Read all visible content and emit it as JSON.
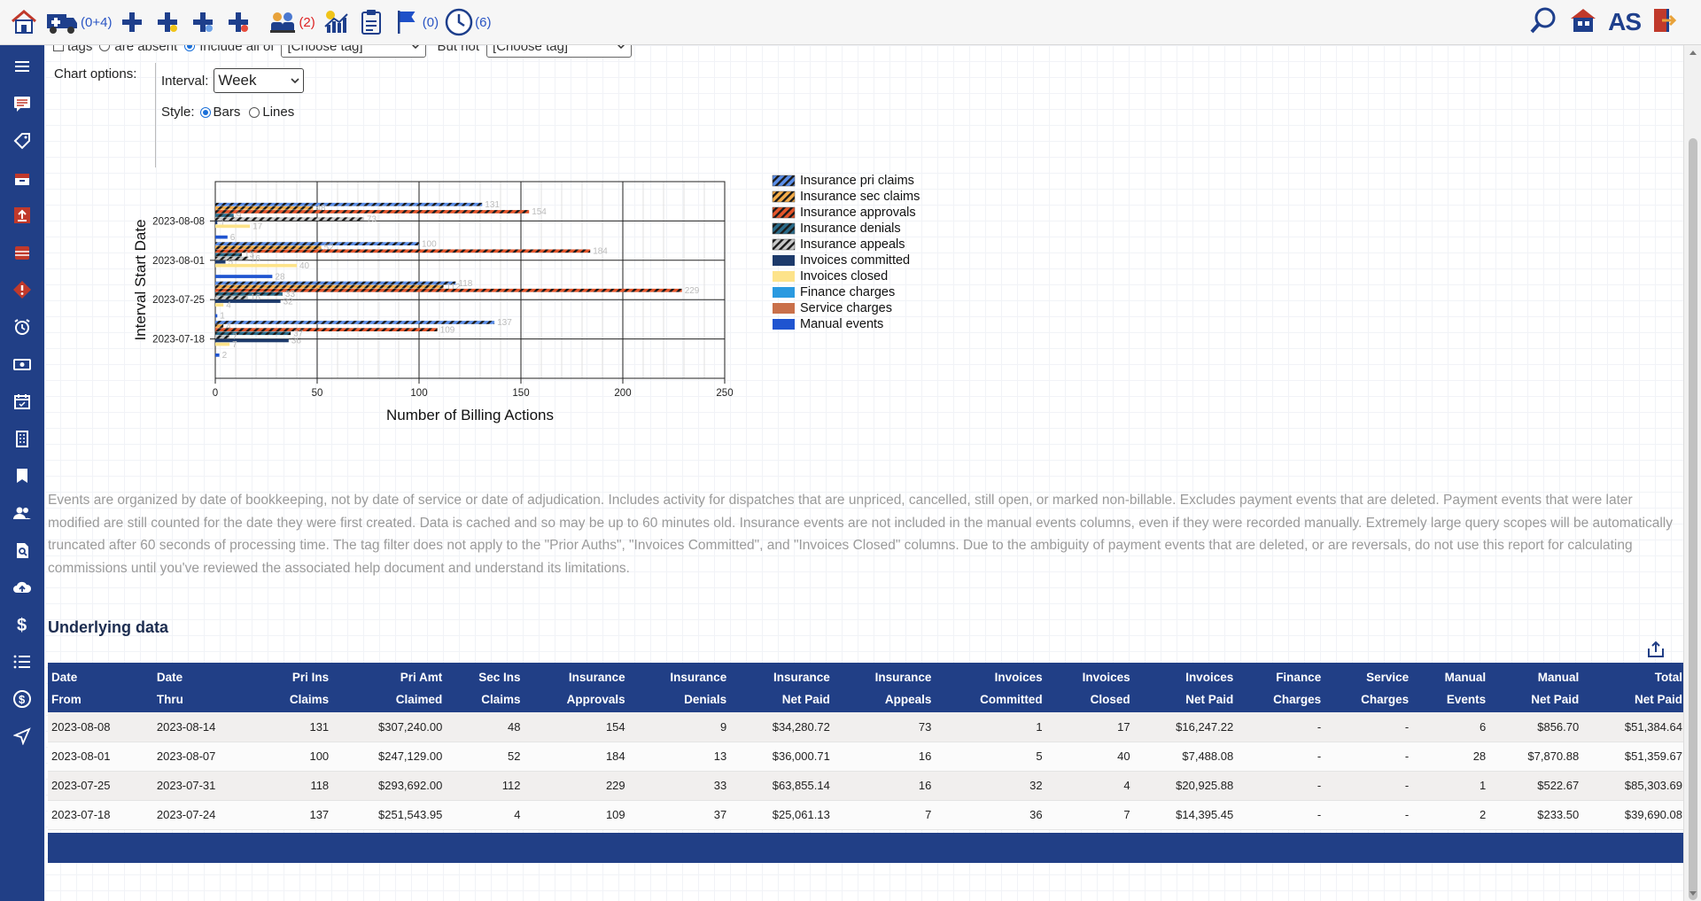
{
  "topbar": {
    "ambulance_count": "(0+4)",
    "team_count": "(2)",
    "flag_count": "(0)",
    "clock_count": "(6)",
    "user_initials": "AS"
  },
  "filters": {
    "partial_text_1": "tags",
    "partial_text_2": "are absent",
    "partial_text_3": "Include all of",
    "tag_select_1": "[Choose tag]",
    "but_not_label": "But not",
    "tag_select_2": "[Choose tag]"
  },
  "chart_options": {
    "label": "Chart options:",
    "interval_label": "Interval:",
    "interval_value": "Week",
    "style_label": "Style:",
    "style_bars": "Bars",
    "style_lines": "Lines",
    "style_selected": "Bars"
  },
  "chart_data": {
    "type": "bar",
    "orientation": "horizontal",
    "categories": [
      "2023-08-08",
      "2023-08-01",
      "2023-07-25",
      "2023-07-18"
    ],
    "xlabel": "Number of Billing Actions",
    "ylabel": "Interval Start Date",
    "xlim": [
      0,
      250
    ],
    "xticks": [
      0,
      50,
      100,
      150,
      200,
      250
    ],
    "grid": true,
    "legend_position": "right",
    "series": [
      {
        "name": "Insurance pri claims",
        "color": "#5b8ee8",
        "pattern": true,
        "values": [
          131,
          100,
          118,
          137
        ]
      },
      {
        "name": "Insurance sec claims",
        "color": "#f5ad4a",
        "pattern": true,
        "values": [
          48,
          52,
          112,
          4
        ]
      },
      {
        "name": "Insurance approvals",
        "color": "#e5552a",
        "pattern": true,
        "values": [
          154,
          184,
          229,
          109
        ]
      },
      {
        "name": "Insurance denials",
        "color": "#2a6b8a",
        "pattern": true,
        "values": [
          9,
          13,
          33,
          37
        ]
      },
      {
        "name": "Insurance appeals",
        "color": "#c8c8c8",
        "pattern": true,
        "values": [
          73,
          16,
          16,
          7
        ]
      },
      {
        "name": "Invoices committed",
        "color": "#1d3a6b",
        "pattern": false,
        "values": [
          1,
          5,
          32,
          36
        ]
      },
      {
        "name": "Invoices closed",
        "color": "#fde38a",
        "pattern": false,
        "values": [
          17,
          40,
          4,
          7
        ]
      },
      {
        "name": "Finance charges",
        "color": "#2a9ae0",
        "pattern": false,
        "values": [
          0,
          0,
          0,
          0
        ]
      },
      {
        "name": "Service charges",
        "color": "#c9704a",
        "pattern": false,
        "values": [
          0,
          0,
          0,
          0
        ]
      },
      {
        "name": "Manual events",
        "color": "#1f54d0",
        "pattern": false,
        "values": [
          6,
          28,
          1,
          2
        ]
      }
    ]
  },
  "notes": "Events are organized by date of bookkeeping, not by date of service or date of adjudication. Includes activity for dispatches that are unpriced, cancelled, still open, or marked non-billable. Excludes payment events that are deleted. Payment events that were later modified are still counted for the date they were first created. Data is cached and so may be up to 60 minutes old. Insurance events are not included in the manual events columns, even if they were recorded manually. Extremely large query scopes will be automatically truncated after 60 seconds of processing time. The tag filter does not apply to the \"Prior Auths\", \"Invoices Committed\", and \"Invoices Closed\" columns. Due to the ambiguity of payment events that are deleted, or are reversals, do not use this report for calculating commissions until you've reviewed the associated help document and understand its limitations.",
  "underlying_title": "Underlying data",
  "table": {
    "headers": [
      [
        "Date",
        "From"
      ],
      [
        "Date",
        "Thru"
      ],
      [
        "Pri Ins",
        "Claims"
      ],
      [
        "Pri Amt",
        "Claimed"
      ],
      [
        "Sec Ins",
        "Claims"
      ],
      [
        "Insurance",
        "Approvals"
      ],
      [
        "Insurance",
        "Denials"
      ],
      [
        "Insurance",
        "Net Paid"
      ],
      [
        "Insurance",
        "Appeals"
      ],
      [
        "Invoices",
        "Committed"
      ],
      [
        "Invoices",
        "Closed"
      ],
      [
        "Invoices",
        "Net Paid"
      ],
      [
        "Finance",
        "Charges"
      ],
      [
        "Service",
        "Charges"
      ],
      [
        "Manual",
        "Events"
      ],
      [
        "Manual",
        "Net Paid"
      ],
      [
        "Total",
        "Net Paid"
      ]
    ],
    "rows": [
      [
        "2023-08-08",
        "2023-08-14",
        "131",
        "$307,240.00",
        "48",
        "154",
        "9",
        "$34,280.72",
        "73",
        "1",
        "17",
        "$16,247.22",
        "-",
        "-",
        "6",
        "$856.70",
        "$51,384.64"
      ],
      [
        "2023-08-01",
        "2023-08-07",
        "100",
        "$247,129.00",
        "52",
        "184",
        "13",
        "$36,000.71",
        "16",
        "5",
        "40",
        "$7,488.08",
        "-",
        "-",
        "28",
        "$7,870.88",
        "$51,359.67"
      ],
      [
        "2023-07-25",
        "2023-07-31",
        "118",
        "$293,692.00",
        "112",
        "229",
        "33",
        "$63,855.14",
        "16",
        "32",
        "4",
        "$20,925.88",
        "-",
        "-",
        "1",
        "$522.67",
        "$85,303.69"
      ],
      [
        "2023-07-18",
        "2023-07-24",
        "137",
        "$251,543.95",
        "4",
        "109",
        "37",
        "$25,061.13",
        "7",
        "36",
        "7",
        "$14,395.45",
        "-",
        "-",
        "2",
        "$233.50",
        "$39,690.08"
      ]
    ]
  }
}
